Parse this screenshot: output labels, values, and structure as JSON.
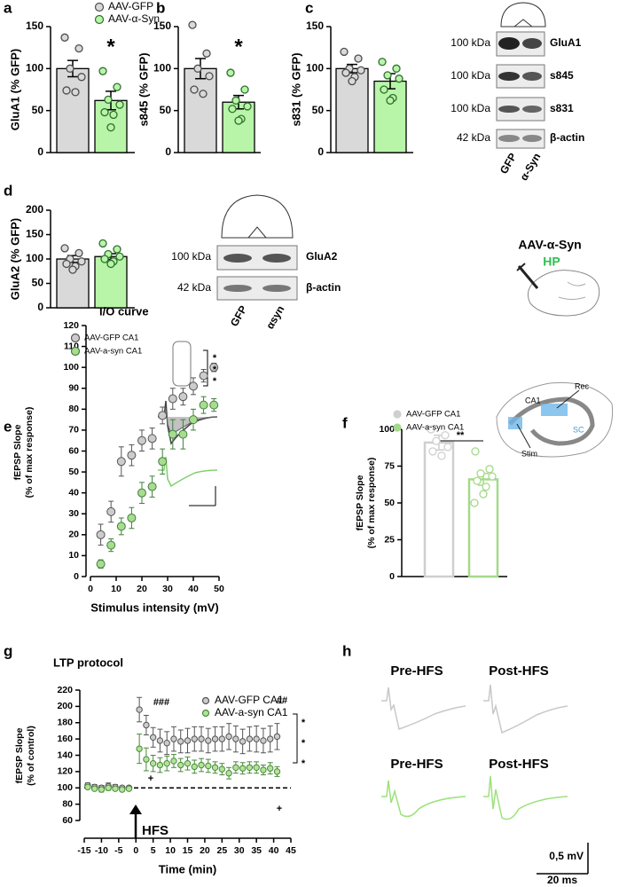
{
  "panel_labels": [
    "a",
    "b",
    "c",
    "d",
    "e",
    "f",
    "g",
    "h"
  ],
  "blot_c": {
    "sizes": [
      "100 kDa",
      "100 kDa",
      "100 kDa",
      "42 kDa"
    ],
    "proteins": [
      "GluA1",
      "s845",
      "s831",
      "β-actin"
    ],
    "lanes": [
      "GFP",
      "α-Syn"
    ]
  },
  "blot_d": {
    "sizes": [
      "100 kDa",
      "42 kDa"
    ],
    "proteins": [
      "GluA2",
      "β-actin"
    ],
    "lanes": [
      "GFP",
      "αsyn"
    ]
  },
  "injection_schematic": {
    "vector": "AAV-α-Syn",
    "region": "HP"
  },
  "hippocampus_schematic": [
    "CA1",
    "Rec",
    "Stim",
    "SC"
  ],
  "traces": {
    "labels": [
      "Pre-HFS",
      "Post-HFS",
      "Pre-HFS",
      "Post-HFS"
    ],
    "scale_voltage": "0,5 mV",
    "scale_time": "20 ms"
  },
  "chart_data": [
    {
      "type": "bar",
      "ylabel": "GluA1 (% GFP)",
      "ylim": [
        0,
        150
      ],
      "yticks": [
        0,
        50,
        100,
        150
      ],
      "legend": "top",
      "annotations": [
        "*"
      ],
      "series": [
        {
          "name": "AAV-GFP",
          "color": "#d9d9d9",
          "edge": "#4d4d4d",
          "values": [
            100
          ],
          "errors": [
            9.7
          ],
          "points": [
            137,
            124,
            100,
            90,
            74,
            72
          ]
        },
        {
          "name": "AAV-α-Syn",
          "color": "#b8f5a8",
          "edge": "#2f6f2f",
          "values": [
            62
          ],
          "errors": [
            11
          ],
          "points": [
            97,
            78,
            63,
            57,
            48,
            45,
            30
          ]
        }
      ]
    },
    {
      "type": "bar",
      "ylabel": "s845 (% GFP)",
      "ylim": [
        0,
        150
      ],
      "yticks": [
        0,
        50,
        100,
        150
      ],
      "annotations": [
        "*"
      ],
      "series": [
        {
          "color": "#d9d9d9",
          "edge": "#4d4d4d",
          "values": [
            100
          ],
          "errors": [
            12
          ],
          "points": [
            152,
            118,
            100,
            91,
            75,
            70
          ]
        },
        {
          "color": "#b8f5a8",
          "edge": "#2f6f2f",
          "values": [
            60
          ],
          "errors": [
            8
          ],
          "points": [
            95,
            75,
            62,
            55,
            52,
            40,
            38
          ]
        }
      ]
    },
    {
      "type": "bar",
      "ylabel": "s831 (% GFP)",
      "ylim": [
        0,
        150
      ],
      "yticks": [
        0,
        50,
        100,
        150
      ],
      "series": [
        {
          "color": "#d9d9d9",
          "edge": "#4d4d4d",
          "values": [
            100
          ],
          "errors": [
            5
          ],
          "points": [
            120,
            112,
            100,
            98,
            95,
            90,
            85
          ]
        },
        {
          "color": "#b8f5a8",
          "edge": "#2f6f2f",
          "values": [
            85
          ],
          "errors": [
            9
          ],
          "points": [
            108,
            100,
            92,
            88,
            75,
            65,
            62
          ]
        }
      ]
    },
    {
      "type": "bar",
      "ylabel": "GluA2 (% GFP)",
      "ylim": [
        0,
        200
      ],
      "yticks": [
        0,
        50,
        100,
        150,
        200
      ],
      "series": [
        {
          "color": "#d9d9d9",
          "edge": "#4d4d4d",
          "values": [
            100
          ],
          "errors": [
            7
          ],
          "points": [
            122,
            112,
            100,
            95,
            90,
            85,
            78
          ]
        },
        {
          "color": "#b8f5a8",
          "edge": "#2f6f2f",
          "values": [
            105
          ],
          "errors": [
            6
          ],
          "points": [
            132,
            120,
            110,
            105,
            100,
            95,
            90
          ]
        }
      ]
    },
    {
      "type": "scatter",
      "title": "I/O curve",
      "xlabel": "Stimulus intensity (mV)",
      "ylabel": [
        "fEPSP Slope",
        "(% of max response)"
      ],
      "xlim": [
        0,
        50
      ],
      "xticks": [
        0,
        10,
        20,
        30,
        40,
        50
      ],
      "ylim": [
        0,
        120
      ],
      "yticks": [
        0,
        10,
        20,
        30,
        40,
        50,
        60,
        70,
        80,
        90,
        100,
        110,
        120
      ],
      "legend": "top-left",
      "annotations": [
        "*",
        "*",
        "*"
      ],
      "x": [
        4,
        8,
        12,
        16,
        20,
        24,
        28,
        32,
        36,
        40,
        44,
        48
      ],
      "series": [
        {
          "name": "AAV-GFP CA1",
          "color": "#cccccc",
          "edge": "#555555",
          "values": [
            20,
            31,
            55,
            58,
            65,
            66,
            77,
            85,
            86,
            91,
            96,
            100
          ],
          "errors": [
            5,
            5,
            7,
            5,
            5,
            5,
            4,
            5,
            4,
            4,
            3,
            2
          ]
        },
        {
          "name": "AAV-a-syn CA1",
          "color": "#a8dc8e",
          "edge": "#3f7f3f",
          "values": [
            6,
            15,
            24,
            28,
            40,
            43,
            55,
            68,
            68,
            75,
            82,
            82
          ],
          "errors": [
            2,
            3,
            4,
            5,
            5,
            5,
            6,
            7,
            7,
            5,
            4,
            3
          ]
        }
      ]
    },
    {
      "type": "bar",
      "bar_style": "outline",
      "ylabel": [
        "fEPSP Slope",
        "(% of max response)"
      ],
      "ylim": [
        0,
        100
      ],
      "yticks": [
        0,
        25,
        50,
        75,
        100
      ],
      "legend": "top-left",
      "annotations": [
        "**"
      ],
      "series": [
        {
          "name": "AAV-GFP CA1",
          "color": "#cfcfcf",
          "edge": "#cfcfcf",
          "values": [
            91
          ],
          "errors": [
            5
          ],
          "points": [
            100,
            96,
            92,
            88,
            85,
            82
          ]
        },
        {
          "name": "AAV-a-syn CA1",
          "color": "#a5d98a",
          "edge": "#a5d98a",
          "values": [
            66
          ],
          "errors": [
            4
          ],
          "points": [
            85,
            73,
            70,
            68,
            65,
            61,
            56,
            50
          ]
        }
      ]
    },
    {
      "type": "scatter",
      "title": "LTP protocol",
      "xlabel": "Time (min)",
      "ylabel": [
        "fEPSP Slope",
        "(% of control)"
      ],
      "xlim": [
        -15,
        45
      ],
      "xticks": [
        -15,
        -10,
        -5,
        0,
        5,
        10,
        15,
        20,
        25,
        30,
        35,
        40,
        45
      ],
      "ylim": [
        60,
        220
      ],
      "yticks": [
        60,
        80,
        100,
        120,
        140,
        160,
        180,
        200,
        220
      ],
      "reference_line": 100,
      "legend": "top-right",
      "annotations": [
        "###",
        "##",
        "*",
        "*",
        "*",
        "+",
        "+",
        "HFS"
      ],
      "x": [
        -14,
        -12,
        -10,
        -8,
        -6,
        -4,
        -2,
        1,
        3,
        5,
        7,
        9,
        11,
        13,
        15,
        17,
        19,
        21,
        23,
        25,
        27,
        29,
        31,
        33,
        35,
        37,
        39,
        41
      ],
      "series": [
        {
          "name": "AAV-GFP CA1",
          "color": "#cccccc",
          "edge": "#555555",
          "values": [
            103,
            101,
            100,
            102,
            101,
            100,
            100,
            196,
            177,
            162,
            158,
            155,
            160,
            157,
            158,
            160,
            160,
            158,
            160,
            160,
            163,
            160,
            157,
            160,
            160,
            158,
            160,
            163
          ],
          "errors": [
            3,
            3,
            3,
            4,
            3,
            2,
            2,
            15,
            12,
            12,
            14,
            14,
            15,
            14,
            15,
            15,
            15,
            15,
            15,
            15,
            16,
            16,
            15,
            15,
            16,
            15,
            16,
            16
          ]
        },
        {
          "name": "AAV-a-syn CA1",
          "color": "#b3e39a",
          "edge": "#4a8a3a",
          "values": [
            101,
            99,
            98,
            100,
            99,
            98,
            99,
            148,
            135,
            130,
            128,
            130,
            133,
            128,
            130,
            126,
            128,
            127,
            125,
            123,
            118,
            125,
            124,
            125,
            125,
            122,
            124,
            120
          ],
          "errors": [
            2,
            2,
            3,
            3,
            2,
            2,
            2,
            18,
            14,
            10,
            9,
            9,
            8,
            8,
            8,
            8,
            8,
            8,
            7,
            7,
            7,
            7,
            7,
            7,
            7,
            6,
            7,
            6
          ]
        }
      ]
    }
  ]
}
